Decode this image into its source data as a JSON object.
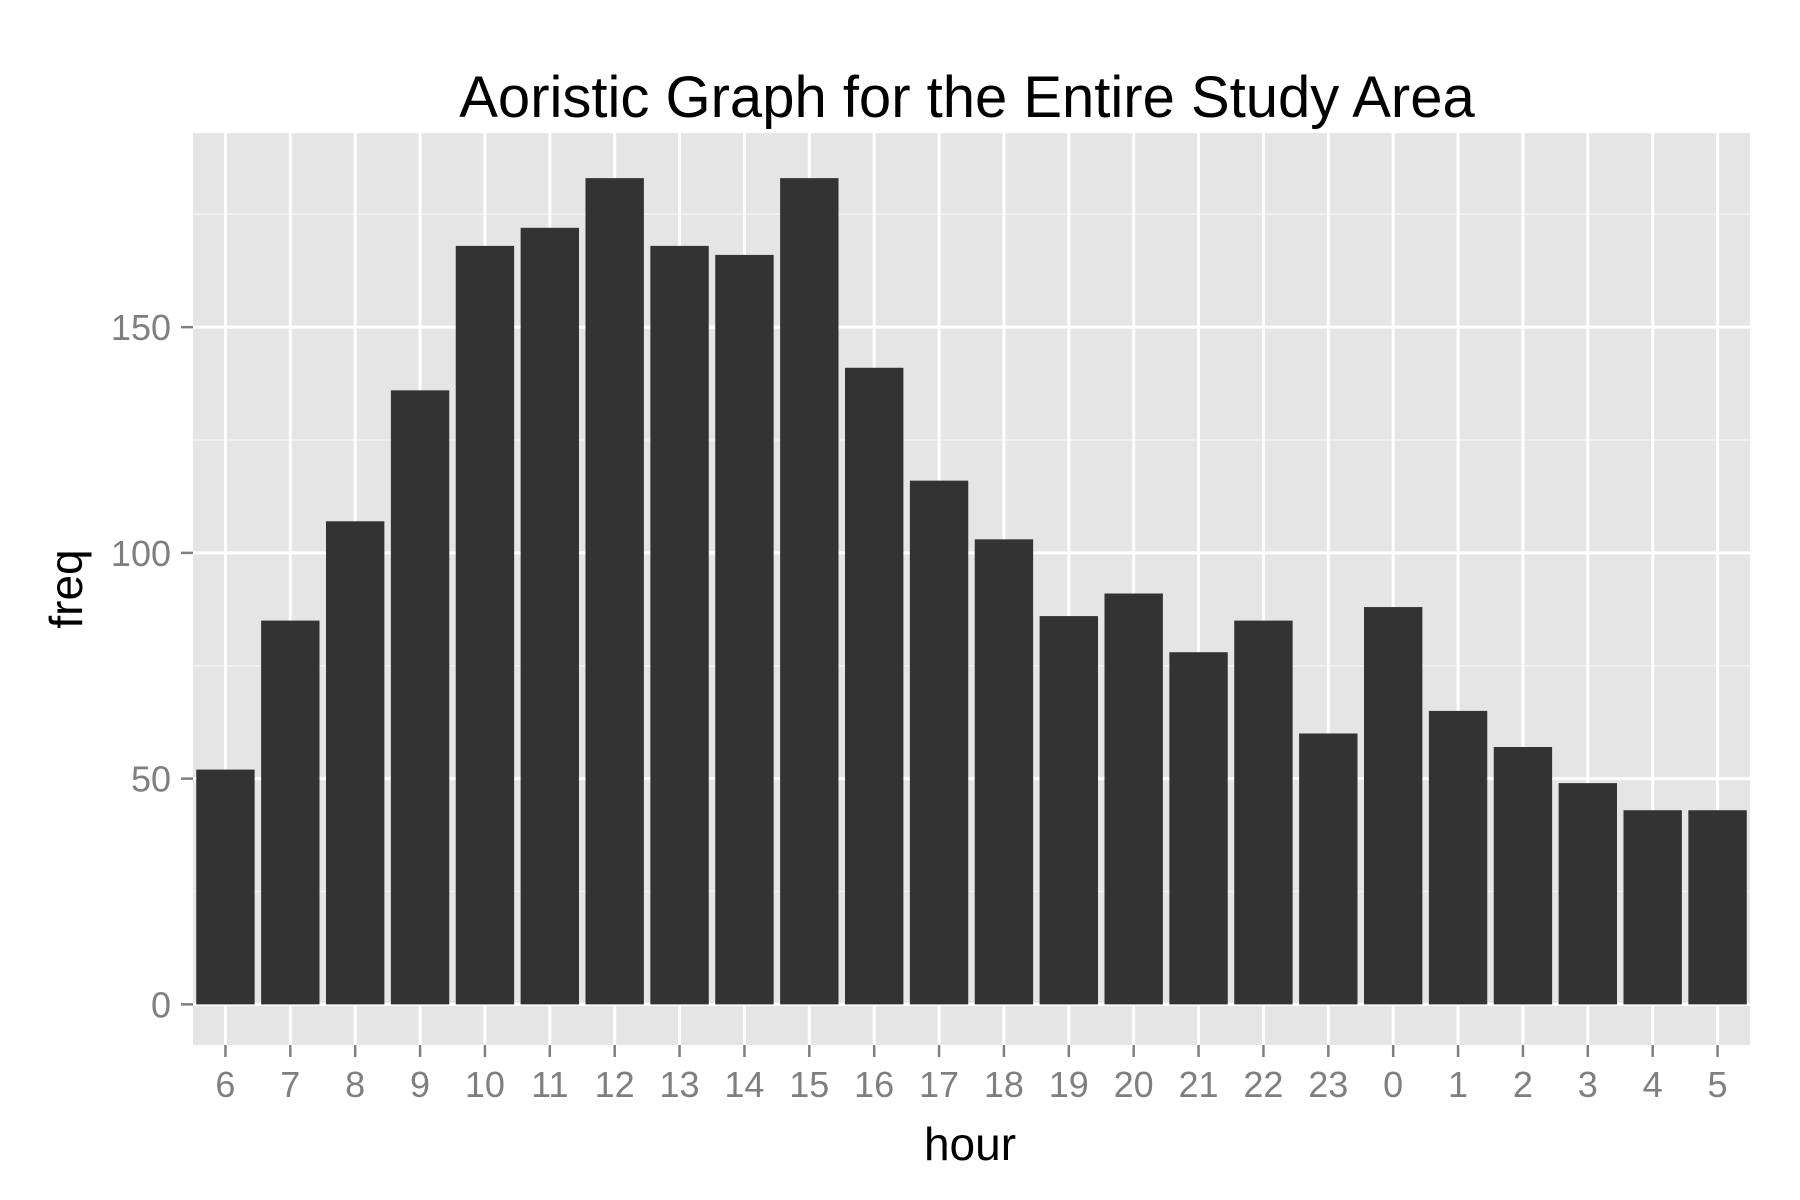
{
  "chart_data": {
    "type": "bar",
    "title": "Aoristic Graph for the Entire Study Area",
    "xlabel": "hour",
    "ylabel": "freq",
    "categories": [
      "6",
      "7",
      "8",
      "9",
      "10",
      "11",
      "12",
      "13",
      "14",
      "15",
      "16",
      "17",
      "18",
      "19",
      "20",
      "21",
      "22",
      "23",
      "0",
      "1",
      "2",
      "3",
      "4",
      "5"
    ],
    "values": [
      52,
      85,
      107,
      136,
      168,
      172,
      183,
      168,
      166,
      183,
      141,
      116,
      103,
      86,
      91,
      78,
      85,
      60,
      88,
      65,
      57,
      49,
      43,
      43
    ],
    "ylim": [
      -9,
      193
    ],
    "yticks": [
      0,
      50,
      100,
      150
    ],
    "grid": true,
    "legend": "none",
    "colors": {
      "bar": "#333333",
      "panel": "#e5e5e5",
      "grid_major": "#ffffff",
      "grid_minor": "#f2f2f2",
      "tick_text": "#7f7f7f"
    }
  }
}
